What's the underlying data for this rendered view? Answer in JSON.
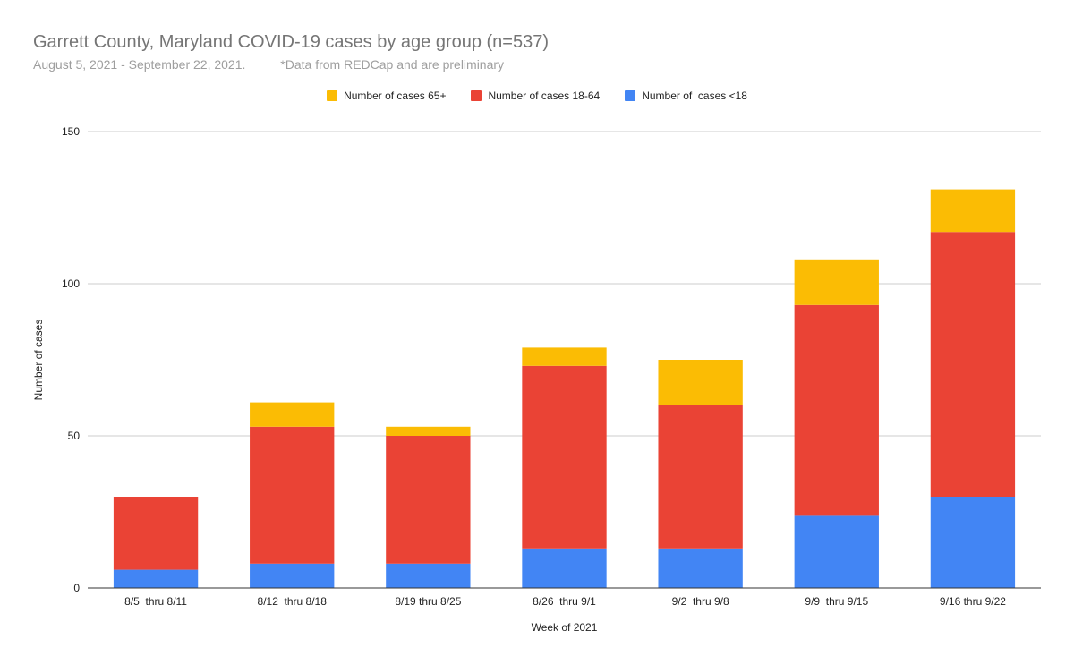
{
  "chart_data": {
    "type": "bar",
    "stacked": true,
    "title": "Garrett County, Maryland COVID-19 cases by age group (n=537)",
    "subtitle": "August 5, 2021 - September 22, 2021.          *Data from REDCap and are preliminary",
    "xlabel": "Week of 2021",
    "ylabel": "Number of cases",
    "ylim": [
      0,
      150
    ],
    "yticks": [
      0,
      50,
      100,
      150
    ],
    "grid": true,
    "legend_position": "top",
    "categories": [
      "8/5  thru 8/11",
      "8/12  thru 8/18",
      "8/19 thru 8/25",
      "8/26  thru 9/1",
      "9/2  thru 9/8",
      "9/9  thru 9/15",
      "9/16 thru 9/22"
    ],
    "series": [
      {
        "name": "Number of  cases <18",
        "color": "#4285f4",
        "values": [
          6,
          8,
          8,
          13,
          13,
          24,
          30
        ]
      },
      {
        "name": "Number of cases 18-64",
        "color": "#ea4335",
        "values": [
          24,
          45,
          42,
          60,
          47,
          69,
          87
        ]
      },
      {
        "name": "Number of cases 65+",
        "color": "#fbbc04",
        "values": [
          0,
          8,
          3,
          6,
          15,
          15,
          14
        ]
      }
    ],
    "legend_order": [
      2,
      1,
      0
    ]
  }
}
